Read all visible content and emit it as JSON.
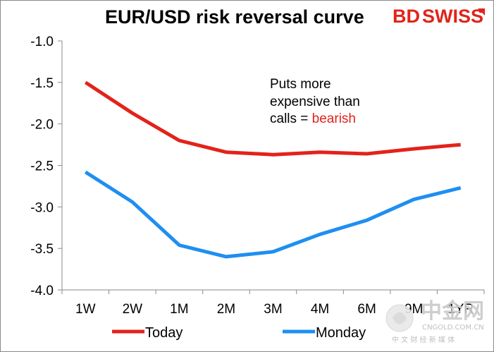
{
  "title": "EUR/USD risk reversal curve",
  "brand": {
    "part1": "BD",
    "part2": "SWISS",
    "color1": "#e2231a",
    "color2": "#e2231a"
  },
  "annotation": {
    "line1": "Puts more",
    "line2": "expensive than",
    "line3_prefix": "calls = ",
    "line3_highlight": "bearish",
    "highlight_color": "#e2231a"
  },
  "watermark": {
    "cn": "中金网",
    "domain": "CNGOLD.COM.CN",
    "subtitle": "中 文 财 经 新 媒 体"
  },
  "chart_data": {
    "type": "line",
    "title": "EUR/USD risk reversal curve",
    "categories": [
      "1W",
      "2W",
      "1M",
      "2M",
      "3M",
      "4M",
      "6M",
      "9M",
      "1YR"
    ],
    "ylim": [
      -4.0,
      -1.0
    ],
    "yticks": [
      -1.0,
      -1.5,
      -2.0,
      -2.5,
      -3.0,
      -3.5,
      -4.0
    ],
    "ytick_labels": [
      "-1.0",
      "-1.5",
      "-2.0",
      "-2.5",
      "-3.0",
      "-3.5",
      "-4.0"
    ],
    "grid": false,
    "legend_position": "bottom",
    "series": [
      {
        "name": "Today",
        "color": "#e2231a",
        "values": [
          -1.5,
          -1.87,
          -2.2,
          -2.34,
          -2.37,
          -2.34,
          -2.36,
          -2.3,
          -2.25
        ]
      },
      {
        "name": "Monday",
        "color": "#1e8ff0",
        "values": [
          -2.58,
          -2.94,
          -3.46,
          -3.6,
          -3.54,
          -3.33,
          -3.16,
          -2.91,
          -2.77
        ]
      }
    ]
  }
}
